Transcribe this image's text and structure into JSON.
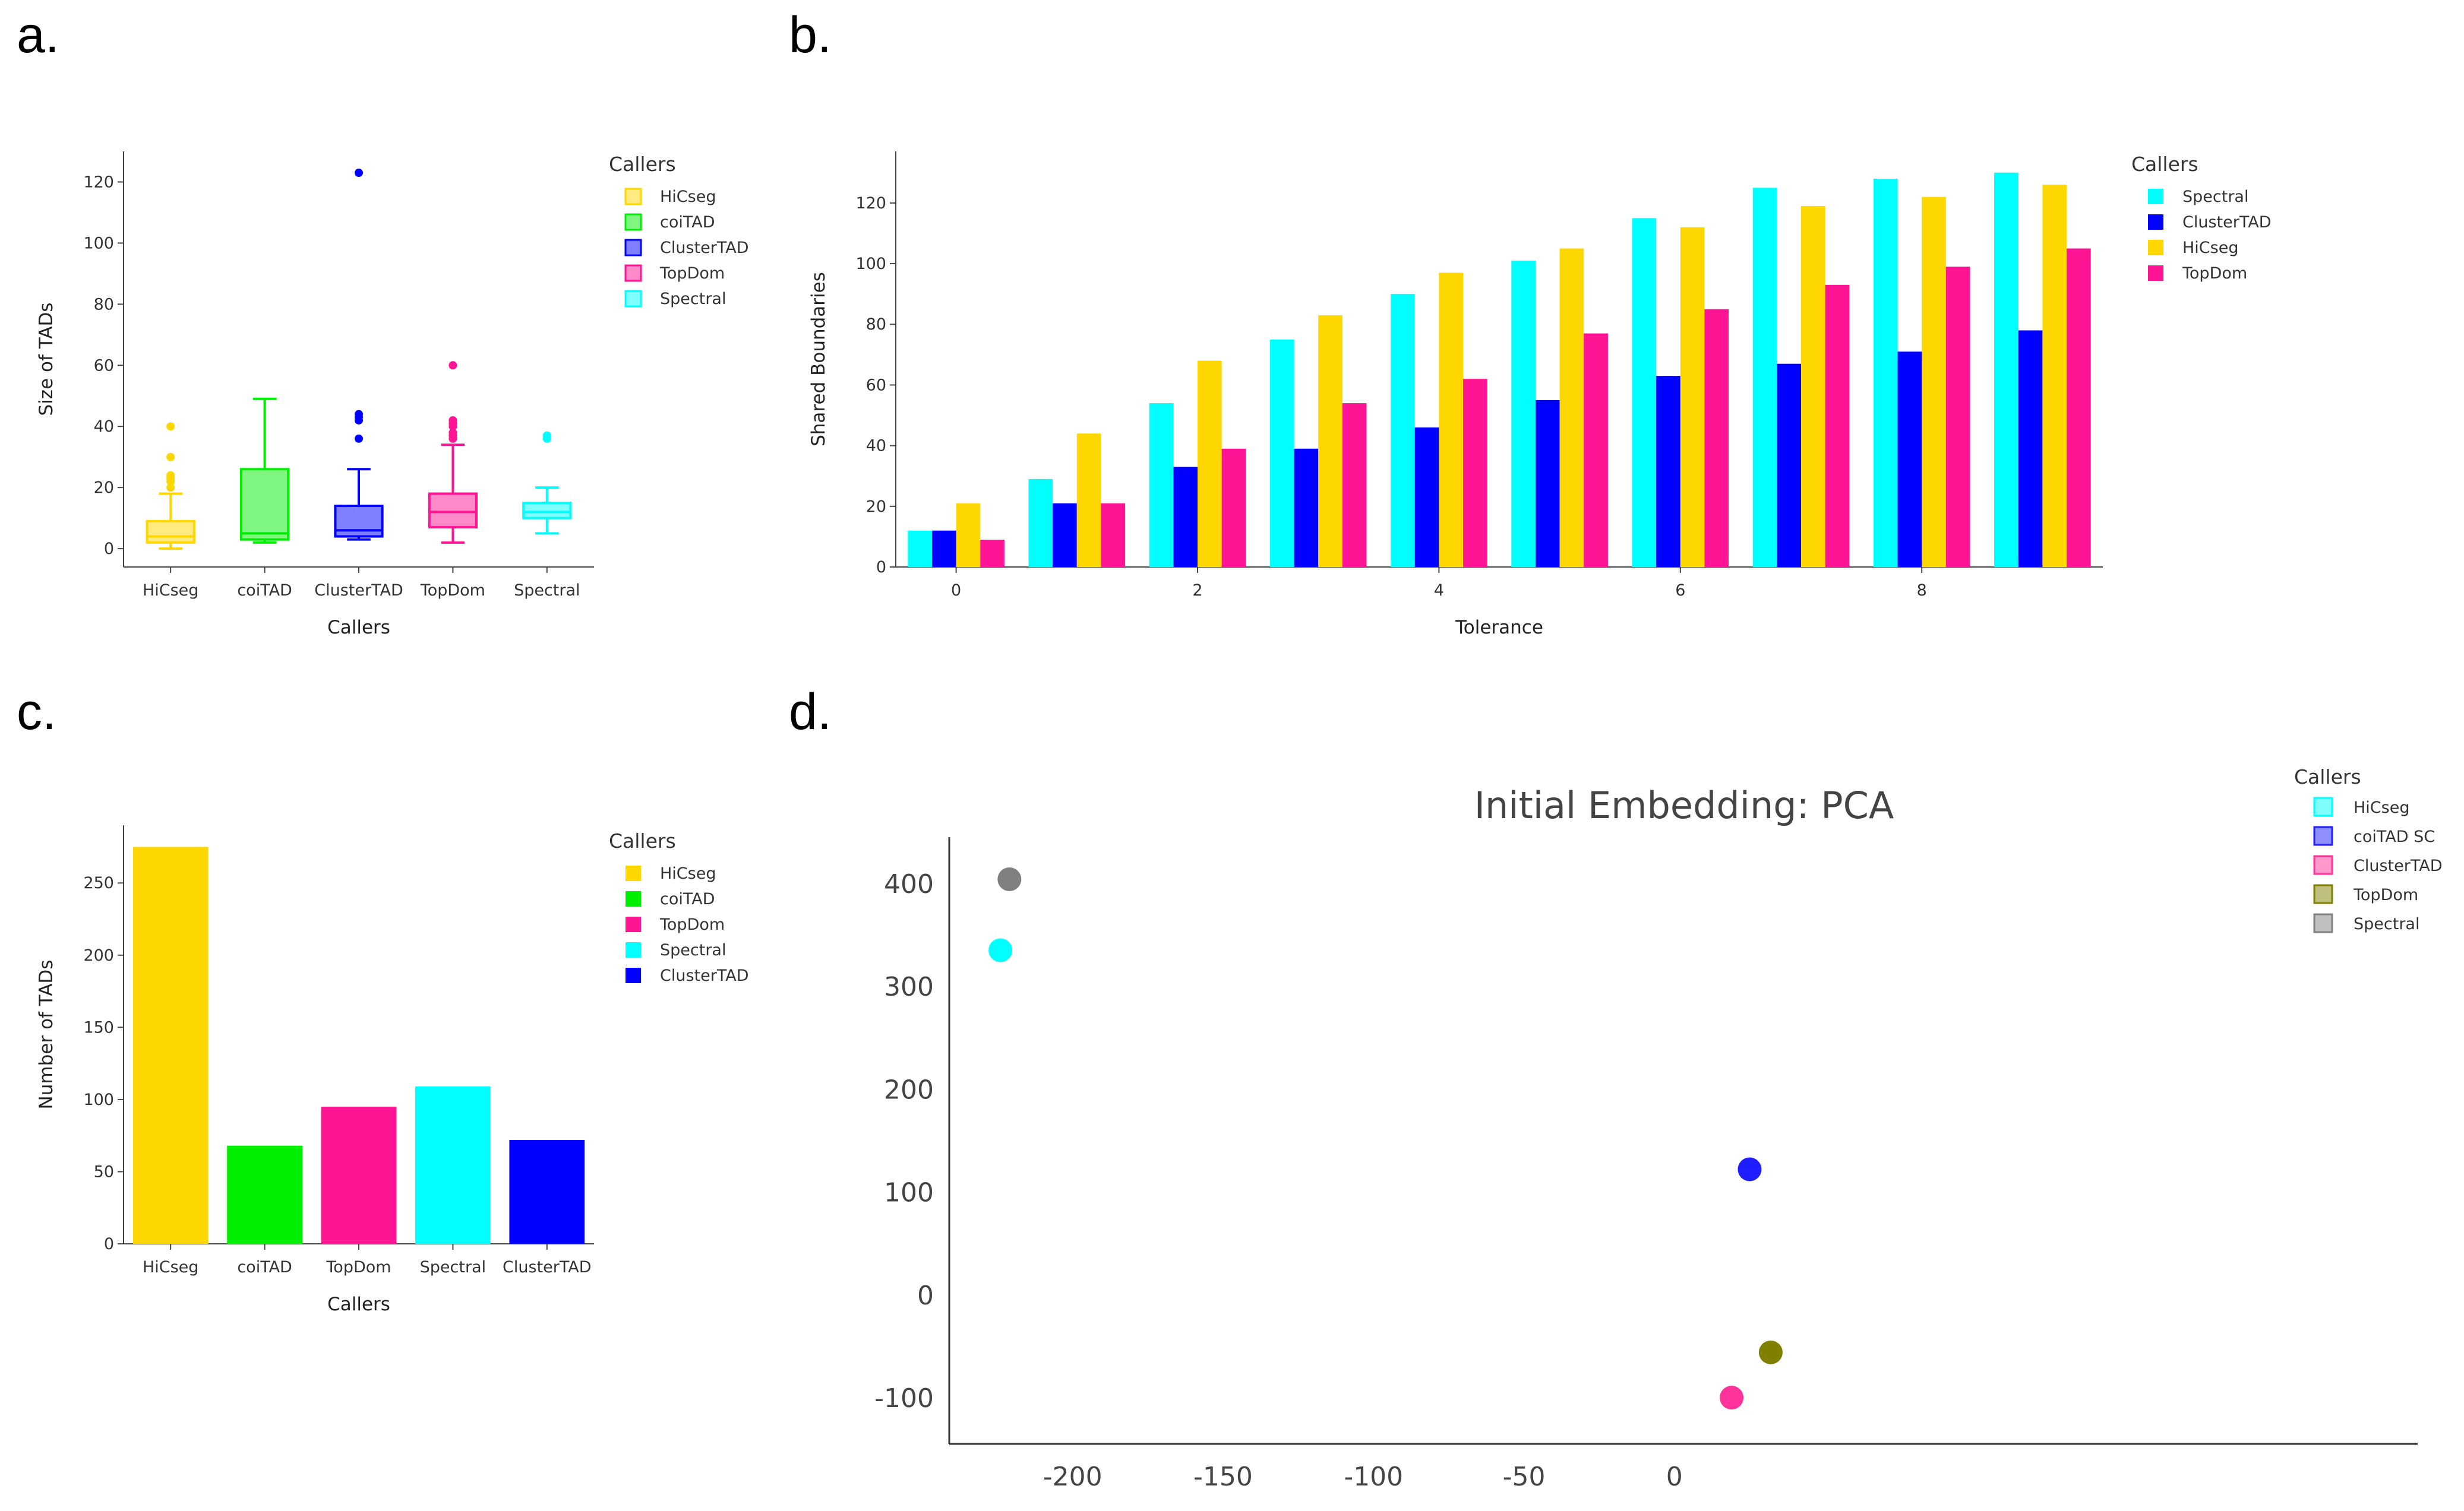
{
  "colors": {
    "HiCseg": "#FFD700",
    "coiTAD": "#00EE00",
    "ClusterTAD": "#0000FF",
    "TopDom": "#FF1493",
    "Spectral": "#00FFFF",
    "d_HiCseg": "#00FFFF",
    "d_coiTAD_SC": "#1E1EFF",
    "d_ClusterTAD": "#FF3399",
    "d_TopDom": "#808000",
    "d_Spectral": "#808080"
  },
  "panels": {
    "a": {
      "letter": "a."
    },
    "b": {
      "letter": "b."
    },
    "c": {
      "letter": "c."
    },
    "d": {
      "letter": "d."
    }
  },
  "chart_data": [
    {
      "id": "a",
      "type": "box",
      "title": "",
      "xlabel": "Callers",
      "ylabel": "Size of TADs",
      "ylim": [
        -6,
        130
      ],
      "yticks": [
        0,
        20,
        40,
        60,
        80,
        100,
        120
      ],
      "legend_title": "Callers",
      "legend_position": "right",
      "categories": [
        "HiCseg",
        "coiTAD",
        "ClusterTAD",
        "TopDom",
        "Spectral"
      ],
      "boxes": [
        {
          "name": "HiCseg",
          "min": 0,
          "q1": 2,
          "median": 4,
          "q3": 9,
          "max": 18,
          "outliers": [
            20,
            22,
            23,
            24,
            30,
            40
          ]
        },
        {
          "name": "coiTAD",
          "min": 2,
          "q1": 3,
          "median": 5,
          "q3": 26,
          "max": 49,
          "outliers": []
        },
        {
          "name": "ClusterTAD",
          "min": 3,
          "q1": 4,
          "median": 6,
          "q3": 14,
          "max": 26,
          "outliers": [
            36,
            42,
            43,
            44,
            123
          ]
        },
        {
          "name": "TopDom",
          "min": 2,
          "q1": 7,
          "median": 12,
          "q3": 18,
          "max": 34,
          "outliers": [
            36,
            37,
            38,
            40,
            41,
            42,
            60
          ]
        },
        {
          "name": "Spectral",
          "min": 5,
          "q1": 10,
          "median": 12,
          "q3": 15,
          "max": 20,
          "outliers": [
            36,
            37
          ]
        }
      ]
    },
    {
      "id": "b",
      "type": "bar",
      "title": "",
      "xlabel": "Tolerance",
      "ylabel": "Shared Boundaries",
      "ylim": [
        0,
        137
      ],
      "yticks": [
        0,
        20,
        40,
        60,
        80,
        100,
        120
      ],
      "xticks": [
        0,
        2,
        4,
        6,
        8
      ],
      "x": [
        0,
        1,
        2,
        3,
        4,
        5,
        6,
        7,
        8,
        9
      ],
      "legend_title": "Callers",
      "legend_position": "right",
      "series": [
        {
          "name": "Spectral",
          "values": [
            12,
            29,
            54,
            75,
            90,
            101,
            115,
            125,
            128,
            130
          ]
        },
        {
          "name": "ClusterTAD",
          "values": [
            12,
            21,
            33,
            39,
            46,
            55,
            63,
            67,
            71,
            78
          ]
        },
        {
          "name": "HiCseg",
          "values": [
            21,
            44,
            68,
            83,
            97,
            105,
            112,
            119,
            122,
            126
          ]
        },
        {
          "name": "TopDom",
          "values": [
            9,
            21,
            39,
            54,
            62,
            77,
            85,
            93,
            99,
            105
          ]
        }
      ]
    },
    {
      "id": "c",
      "type": "bar",
      "title": "",
      "xlabel": "Callers",
      "ylabel": "Number of TADs",
      "ylim": [
        0,
        290
      ],
      "yticks": [
        0,
        50,
        100,
        150,
        200,
        250
      ],
      "legend_title": "Callers",
      "legend_position": "right",
      "categories": [
        "HiCseg",
        "coiTAD",
        "TopDom",
        "Spectral",
        "ClusterTAD"
      ],
      "values": [
        275,
        68,
        95,
        109,
        72
      ]
    },
    {
      "id": "d",
      "type": "scatter",
      "title": "Initial Embedding: PCA",
      "xlabel": "",
      "ylabel": "",
      "xlim": [
        -241,
        247
      ],
      "ylim": [
        -145,
        445
      ],
      "xticks": [
        -200,
        -150,
        -100,
        -50,
        0
      ],
      "yticks": [
        -100,
        0,
        100,
        200,
        300,
        400
      ],
      "legend_title": "Callers",
      "legend_position": "top-right",
      "series": [
        {
          "name": "HiCseg",
          "color_key": "d_HiCseg",
          "x": -224,
          "y": 335
        },
        {
          "name": "coiTAD SC",
          "color_key": "d_coiTAD_SC",
          "x": 25,
          "y": 122
        },
        {
          "name": "ClusterTAD",
          "color_key": "d_ClusterTAD",
          "x": 19,
          "y": -100
        },
        {
          "name": "TopDom",
          "color_key": "d_TopDom",
          "x": 32,
          "y": -56
        },
        {
          "name": "Spectral",
          "color_key": "d_Spectral",
          "x": -221,
          "y": 404
        }
      ]
    }
  ]
}
